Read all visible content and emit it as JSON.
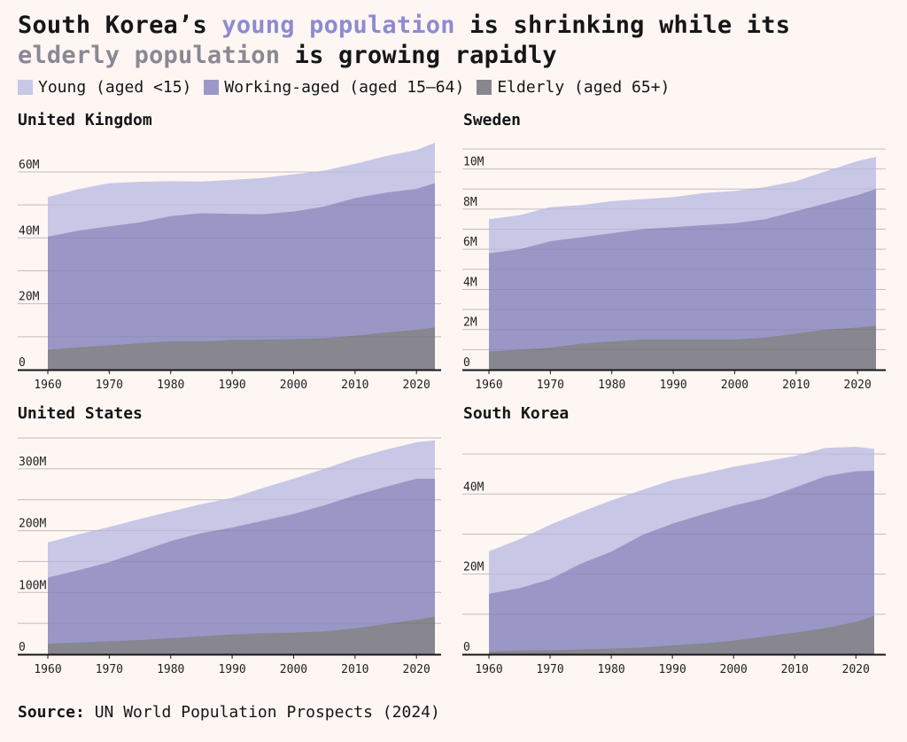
{
  "title": {
    "part1": "South Korea’s ",
    "young": "young population",
    "part2": " is shrinking while its",
    "elderly": "elderly population",
    "part3": " is growing rapidly"
  },
  "legend": [
    {
      "label": "Young (aged <15)",
      "color": "#c9c7e6"
    },
    {
      "label": "Working-aged (aged 15–64)",
      "color": "#9b98c8"
    },
    {
      "label": "Elderly (aged 65+)",
      "color": "#88868f"
    }
  ],
  "colors": {
    "young": "#c9c7e6",
    "working": "#9a97c6",
    "elderly": "#88868f",
    "grid": "#d2cbce",
    "axis": "#161616"
  },
  "source": {
    "label": "Source:",
    "text": "UN World Population Prospects (2024)"
  },
  "chart_data": [
    {
      "type": "area",
      "stacked": true,
      "title": "United Kingdom",
      "x": [
        1960,
        1965,
        1970,
        1975,
        1980,
        1985,
        1990,
        1995,
        2000,
        2005,
        2010,
        2015,
        2020,
        2023
      ],
      "ylim": [
        0,
        67
      ],
      "yticks": [
        0,
        20,
        40,
        60
      ],
      "ytick_labels": [
        "0",
        "20M",
        "40M",
        "60M"
      ],
      "xticks": [
        1960,
        1970,
        1980,
        1990,
        2000,
        2010,
        2020
      ],
      "series": [
        {
          "name": "Elderly (aged 65+)",
          "values": [
            6.1,
            6.8,
            7.4,
            8.1,
            8.6,
            8.6,
            9.0,
            9.1,
            9.3,
            9.6,
            10.3,
            11.3,
            12.1,
            12.8
          ]
        },
        {
          "name": "Working-aged (aged 15–64)",
          "values": [
            34.3,
            35.4,
            36.1,
            36.6,
            38.0,
            38.9,
            38.3,
            38.1,
            38.7,
            39.9,
            41.8,
            42.4,
            42.8,
            43.8
          ]
        },
        {
          "name": "Young (aged <15)",
          "values": [
            12.0,
            12.6,
            13.1,
            12.3,
            10.6,
            9.6,
            10.3,
            11.0,
            11.3,
            10.9,
            10.4,
            11.1,
            11.8,
            12.3
          ]
        }
      ]
    },
    {
      "type": "area",
      "stacked": true,
      "title": "Sweden",
      "x": [
        1960,
        1965,
        1970,
        1975,
        1980,
        1985,
        1990,
        1995,
        2000,
        2005,
        2010,
        2015,
        2020,
        2023
      ],
      "ylim": [
        0,
        11
      ],
      "yticks": [
        0,
        2,
        4,
        6,
        8,
        10
      ],
      "ytick_labels": [
        "0",
        "2M",
        "4M",
        "6M",
        "8M",
        "10M"
      ],
      "xticks": [
        1960,
        1970,
        1980,
        1990,
        2000,
        2010,
        2020
      ],
      "series": [
        {
          "name": "Elderly (aged 65+)",
          "values": [
            0.9,
            1.0,
            1.1,
            1.3,
            1.4,
            1.5,
            1.5,
            1.5,
            1.5,
            1.6,
            1.8,
            2.0,
            2.1,
            2.2
          ]
        },
        {
          "name": "Working-aged (aged 15–64)",
          "values": [
            4.9,
            5.0,
            5.3,
            5.3,
            5.4,
            5.5,
            5.6,
            5.7,
            5.8,
            5.9,
            6.1,
            6.3,
            6.6,
            6.8
          ]
        },
        {
          "name": "Young (aged <15)",
          "values": [
            1.7,
            1.7,
            1.7,
            1.6,
            1.6,
            1.5,
            1.5,
            1.6,
            1.6,
            1.6,
            1.5,
            1.6,
            1.7,
            1.6
          ]
        }
      ]
    },
    {
      "type": "area",
      "stacked": true,
      "title": "United States",
      "x": [
        1960,
        1965,
        1970,
        1975,
        1980,
        1985,
        1990,
        1995,
        2000,
        2005,
        2010,
        2015,
        2020,
        2023
      ],
      "ylim": [
        0,
        350
      ],
      "yticks": [
        0,
        100,
        200,
        300
      ],
      "ytick_labels": [
        "0",
        "100M",
        "200M",
        "300M"
      ],
      "xticks": [
        1960,
        1970,
        1980,
        1990,
        2000,
        2010,
        2020
      ],
      "series": [
        {
          "name": "Elderly (aged 65+)",
          "values": [
            17,
            19,
            21,
            23,
            26,
            29,
            32,
            34,
            35,
            37,
            42,
            49,
            56,
            61
          ]
        },
        {
          "name": "Working-aged (aged 15–64)",
          "values": [
            107,
            117,
            128,
            143,
            157,
            167,
            173,
            182,
            192,
            204,
            215,
            222,
            228,
            223
          ]
        },
        {
          "name": "Young (aged <15)",
          "values": [
            57,
            58,
            57,
            53,
            48,
            47,
            48,
            53,
            57,
            59,
            60,
            60,
            59,
            62
          ]
        }
      ]
    },
    {
      "type": "area",
      "stacked": true,
      "title": "South Korea",
      "x": [
        1960,
        1965,
        1970,
        1975,
        1980,
        1985,
        1990,
        1995,
        2000,
        2005,
        2010,
        2015,
        2020,
        2023
      ],
      "ylim": [
        0,
        54
      ],
      "yticks": [
        0,
        20,
        40
      ],
      "ytick_labels": [
        "0",
        "20M",
        "40M"
      ],
      "xticks": [
        1960,
        1970,
        1980,
        1990,
        2000,
        2010,
        2020
      ],
      "series": [
        {
          "name": "Elderly (aged 65+)",
          "values": [
            0.7,
            0.9,
            1.0,
            1.2,
            1.4,
            1.7,
            2.2,
            2.7,
            3.4,
            4.4,
            5.4,
            6.5,
            8.1,
            9.6
          ]
        },
        {
          "name": "Working-aged (aged 15–64)",
          "values": [
            14.4,
            15.6,
            17.7,
            21.4,
            24.2,
            28.0,
            30.4,
            32.2,
            33.7,
            34.5,
            36.2,
            37.9,
            37.6,
            36.2
          ]
        },
        {
          "name": "Young (aged <15)",
          "values": [
            10.6,
            12.2,
            13.6,
            12.9,
            12.8,
            11.3,
            10.9,
            10.2,
            9.7,
            9.2,
            7.9,
            7.1,
            6.1,
            5.5
          ]
        }
      ]
    }
  ]
}
